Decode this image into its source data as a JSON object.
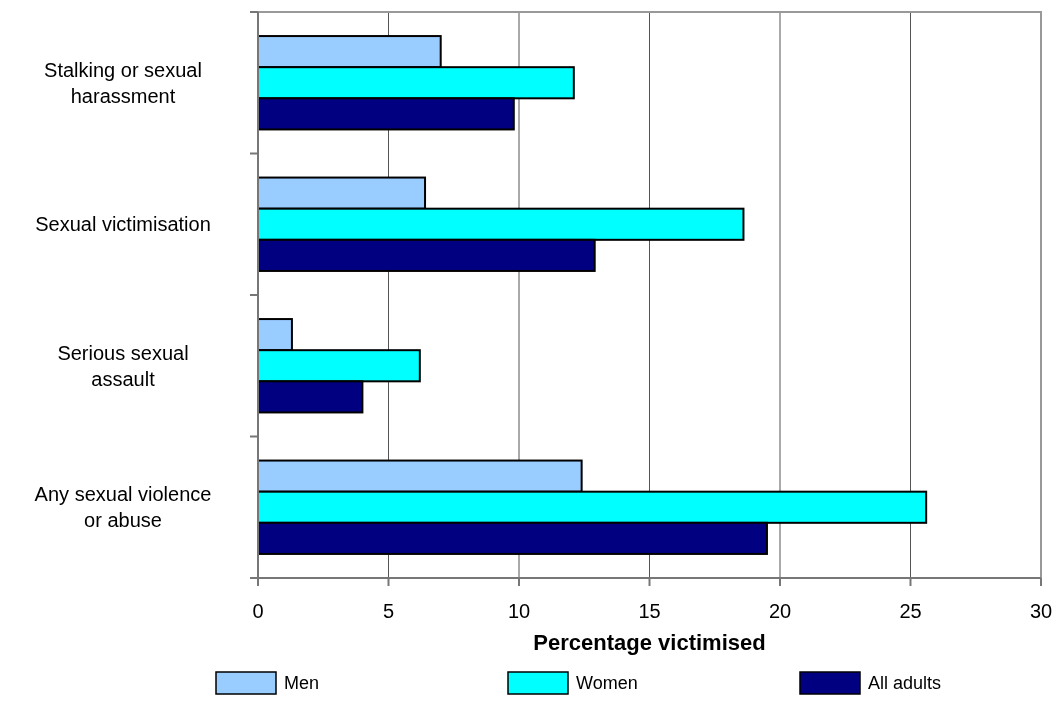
{
  "chart_data": {
    "type": "bar",
    "orientation": "horizontal",
    "xlabel": "Percentage victimised",
    "categories": [
      "Stalking or sexual harassment",
      "Sexual victimisation",
      "Serious sexual assault",
      "Any sexual violence or abuse"
    ],
    "series": [
      {
        "name": "Men",
        "color": "#99ccff",
        "values": [
          7.0,
          6.4,
          1.3,
          12.4
        ]
      },
      {
        "name": "Women",
        "color": "#00ffff",
        "values": [
          12.1,
          18.6,
          6.2,
          25.6
        ]
      },
      {
        "name": "All adults",
        "color": "#000080",
        "values": [
          9.8,
          12.9,
          4.0,
          19.5
        ]
      }
    ],
    "xlim": [
      0,
      30
    ],
    "xticks": [
      0,
      5,
      10,
      15,
      20,
      25,
      30
    ],
    "grid": "x",
    "legend": "bottom"
  }
}
